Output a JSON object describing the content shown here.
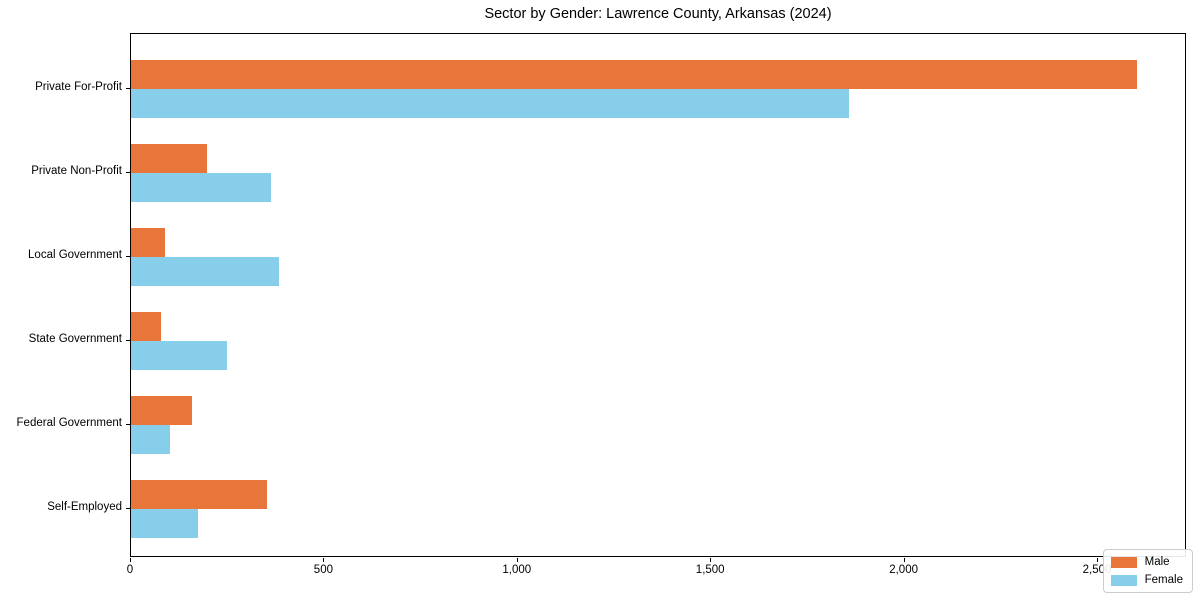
{
  "chart_data": {
    "type": "bar",
    "orientation": "horizontal",
    "title": "Sector by Gender: Lawrence County, Arkansas (2024)",
    "categories": [
      "Private For-Profit",
      "Private Non-Profit",
      "Local Government",
      "State Government",
      "Federal Government",
      "Self-Employed"
    ],
    "series": [
      {
        "name": "Male",
        "color": "#e8763b",
        "values": [
          2600,
          196,
          89,
          78,
          158,
          352
        ]
      },
      {
        "name": "Female",
        "color": "#87ceeb",
        "values": [
          1855,
          362,
          382,
          249,
          100,
          172
        ]
      }
    ],
    "xlabel": "",
    "ylabel": "",
    "xlim": [
      0,
      2730
    ],
    "xticks": [
      0,
      500,
      1000,
      1500,
      2000,
      2500
    ],
    "xtick_labels": [
      "0",
      "500",
      "1,000",
      "1,500",
      "2,000",
      "2,500"
    ],
    "grid": false,
    "legend_position": "lower right",
    "axis_color": "#000000",
    "background_color": "#ffffff"
  }
}
